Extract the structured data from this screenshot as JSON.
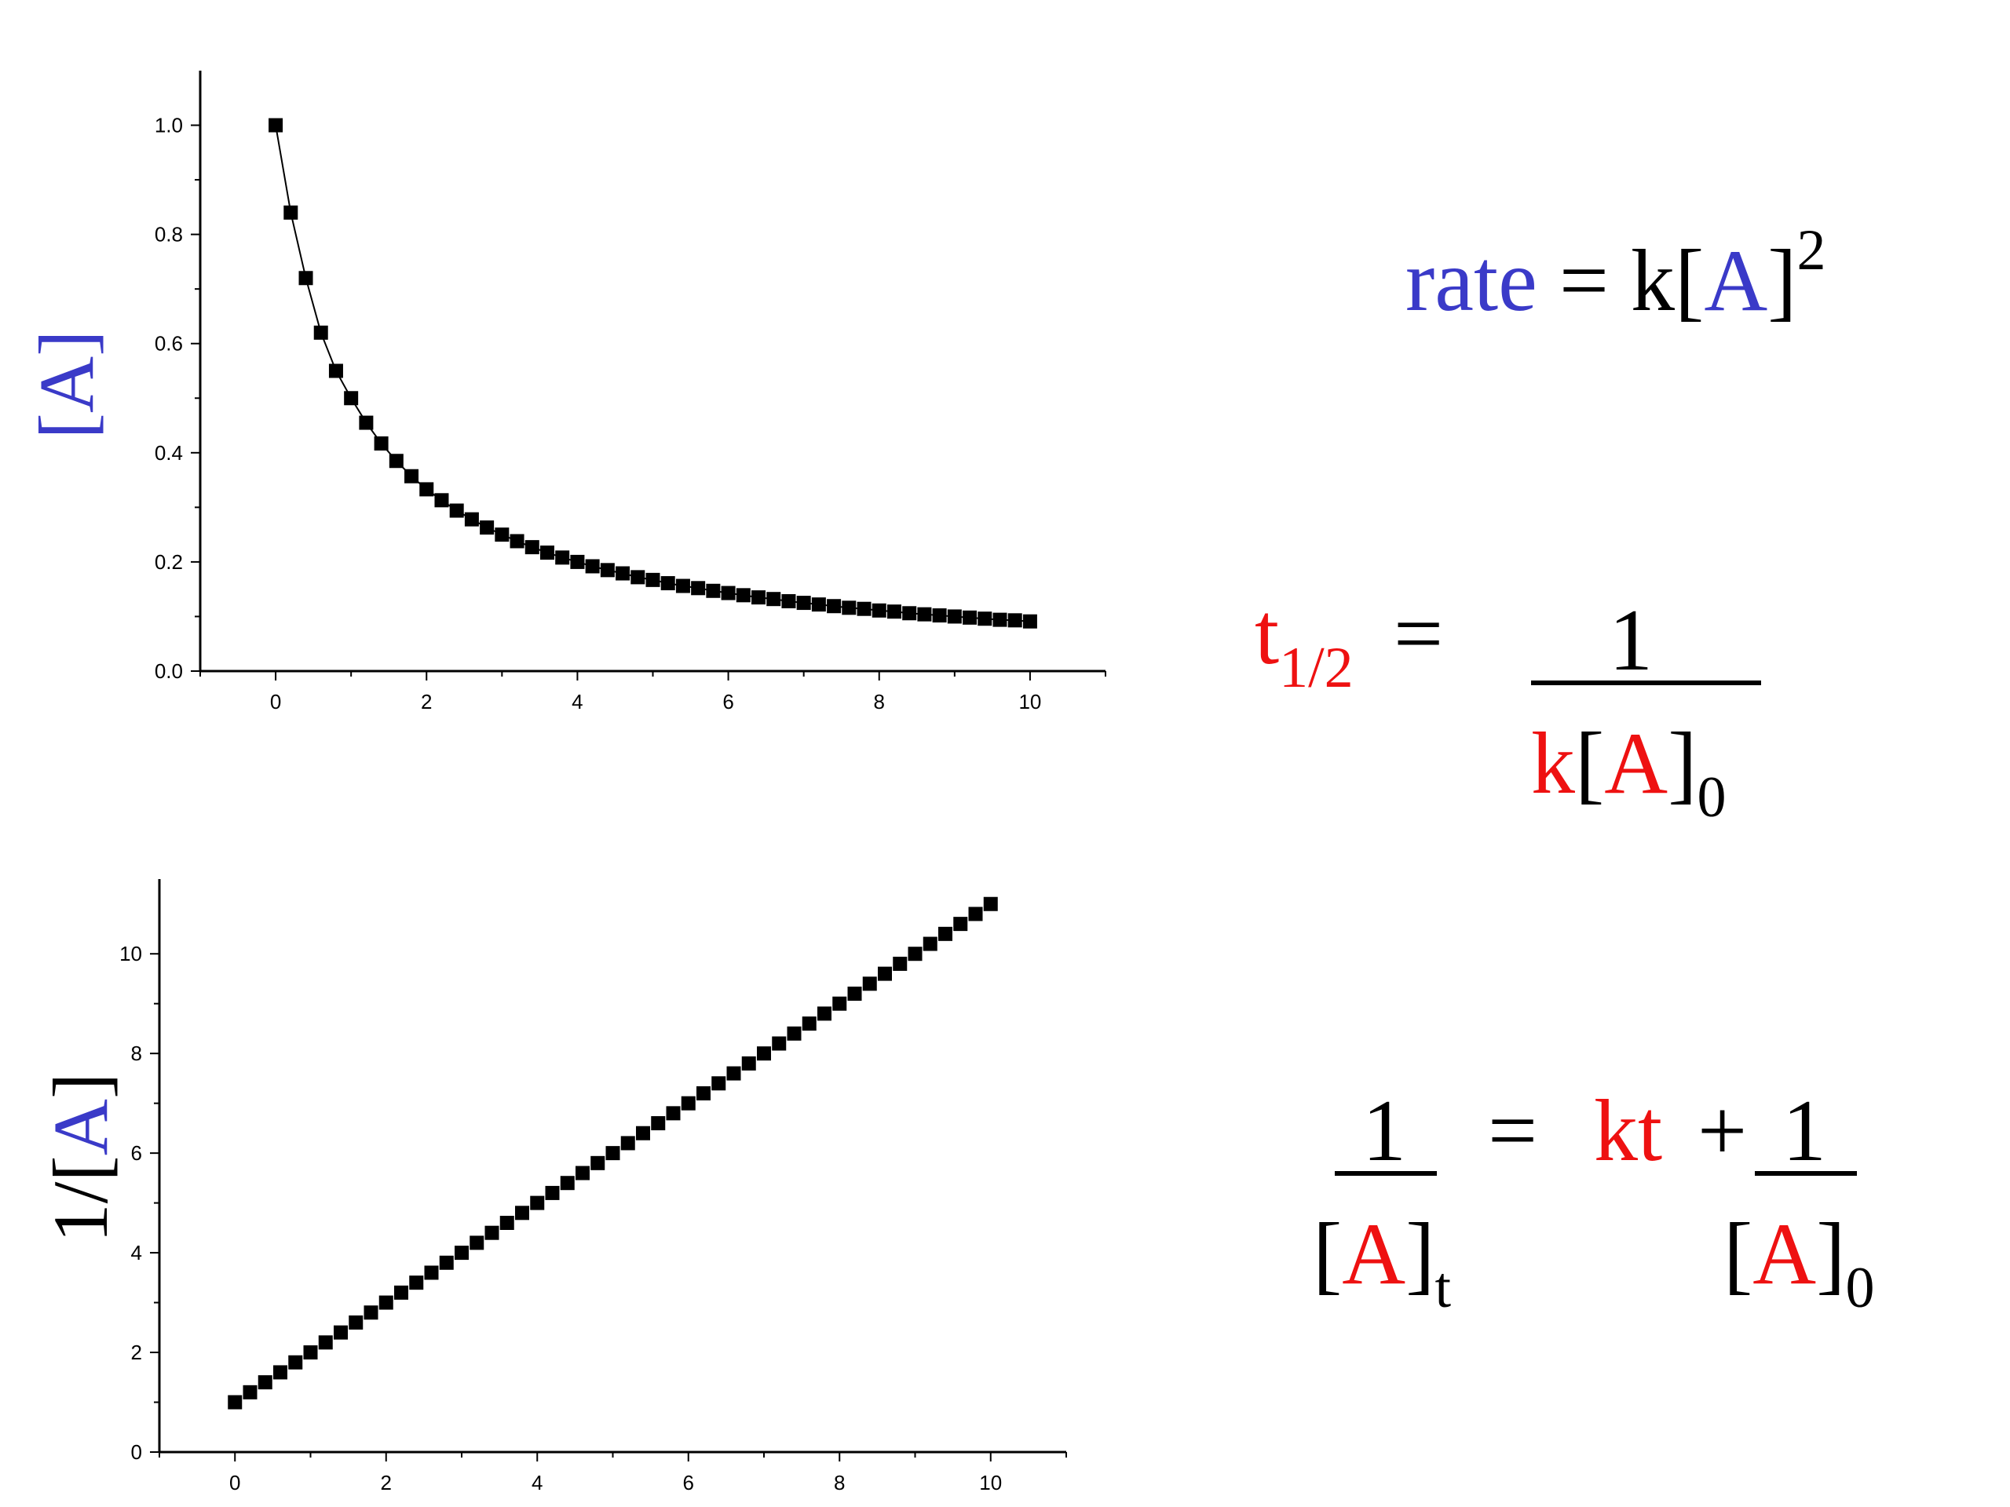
{
  "colors": {
    "blue": "#3a3ac8",
    "red": "#ee1111",
    "black": "#000000"
  },
  "chart_data": [
    {
      "type": "scatter",
      "ylabel": "[A]",
      "xlabel": "",
      "xlim": [
        -1,
        11
      ],
      "ylim": [
        0,
        1.1
      ],
      "xticks": [
        "0",
        "2",
        "4",
        "6",
        "8",
        "10"
      ],
      "yticks": [
        "0.0",
        "0.2",
        "0.4",
        "0.6",
        "0.8",
        "1.0"
      ],
      "connected": true,
      "marker": "square",
      "x": [
        0,
        0.2,
        0.4,
        0.6,
        0.8,
        1.0,
        1.2,
        1.4,
        1.6,
        1.8,
        2.0,
        2.2,
        2.4,
        2.6,
        2.8,
        3.0,
        3.2,
        3.4,
        3.6,
        3.8,
        4.0,
        4.2,
        4.4,
        4.6,
        4.8,
        5.0,
        5.2,
        5.4,
        5.6,
        5.8,
        6.0,
        6.2,
        6.4,
        6.6,
        6.8,
        7.0,
        7.2,
        7.4,
        7.6,
        7.8,
        8.0,
        8.2,
        8.4,
        8.6,
        8.8,
        9.0,
        9.2,
        9.4,
        9.6,
        9.8,
        10.0
      ],
      "y": [
        1.0,
        0.84,
        0.72,
        0.62,
        0.55,
        0.5,
        0.455,
        0.417,
        0.385,
        0.357,
        0.333,
        0.313,
        0.294,
        0.278,
        0.263,
        0.25,
        0.238,
        0.227,
        0.217,
        0.208,
        0.2,
        0.192,
        0.185,
        0.179,
        0.172,
        0.167,
        0.161,
        0.156,
        0.152,
        0.147,
        0.143,
        0.139,
        0.135,
        0.132,
        0.128,
        0.125,
        0.122,
        0.119,
        0.116,
        0.114,
        0.111,
        0.109,
        0.106,
        0.104,
        0.102,
        0.1,
        0.098,
        0.096,
        0.094,
        0.093,
        0.091
      ]
    },
    {
      "type": "scatter",
      "ylabel": "1/[A]",
      "xlabel": "",
      "xlim": [
        -1,
        11
      ],
      "ylim": [
        0,
        11.5
      ],
      "xticks": [
        "0",
        "2",
        "4",
        "6",
        "8",
        "10"
      ],
      "yticks": [
        "0",
        "2",
        "4",
        "6",
        "8",
        "10"
      ],
      "connected": false,
      "marker": "square",
      "x": [
        0,
        0.2,
        0.4,
        0.6,
        0.8,
        1.0,
        1.2,
        1.4,
        1.6,
        1.8,
        2.0,
        2.2,
        2.4,
        2.6,
        2.8,
        3.0,
        3.2,
        3.4,
        3.6,
        3.8,
        4.0,
        4.2,
        4.4,
        4.6,
        4.8,
        5.0,
        5.2,
        5.4,
        5.6,
        5.8,
        6.0,
        6.2,
        6.4,
        6.6,
        6.8,
        7.0,
        7.2,
        7.4,
        7.6,
        7.8,
        8.0,
        8.2,
        8.4,
        8.6,
        8.8,
        9.0,
        9.2,
        9.4,
        9.6,
        9.8,
        10.0
      ],
      "y": [
        1.0,
        1.2,
        1.4,
        1.6,
        1.8,
        2.0,
        2.2,
        2.4,
        2.6,
        2.8,
        3.0,
        3.2,
        3.4,
        3.6,
        3.8,
        4.0,
        4.2,
        4.4,
        4.6,
        4.8,
        5.0,
        5.2,
        5.4,
        5.6,
        5.8,
        6.0,
        6.2,
        6.4,
        6.6,
        6.8,
        7.0,
        7.2,
        7.4,
        7.6,
        7.8,
        8.0,
        8.2,
        8.4,
        8.6,
        8.8,
        9.0,
        9.2,
        9.4,
        9.6,
        9.8,
        10.0,
        10.2,
        10.4,
        10.6,
        10.8,
        11.0
      ]
    }
  ],
  "equations": {
    "rate_law": {
      "lhs": "rate",
      "equals": "=",
      "k": "k[",
      "species": "A",
      "close": "]",
      "power": "2"
    },
    "half_life": {
      "t": "t",
      "sub": "1/2",
      "equals": "=",
      "numerator": "1",
      "den_k": "k[",
      "den_species": "A",
      "den_close": "]",
      "den_sub": "0"
    },
    "integrated": {
      "num1": "1",
      "d1_open": "[",
      "d1_species": "A",
      "d1_close": "]",
      "d1_sub": "t",
      "equals": "=",
      "kt": "kt",
      "plus": "+",
      "num2": "1",
      "d2_open": "[",
      "d2_species": "A",
      "d2_close": "]",
      "d2_sub": "0"
    }
  }
}
